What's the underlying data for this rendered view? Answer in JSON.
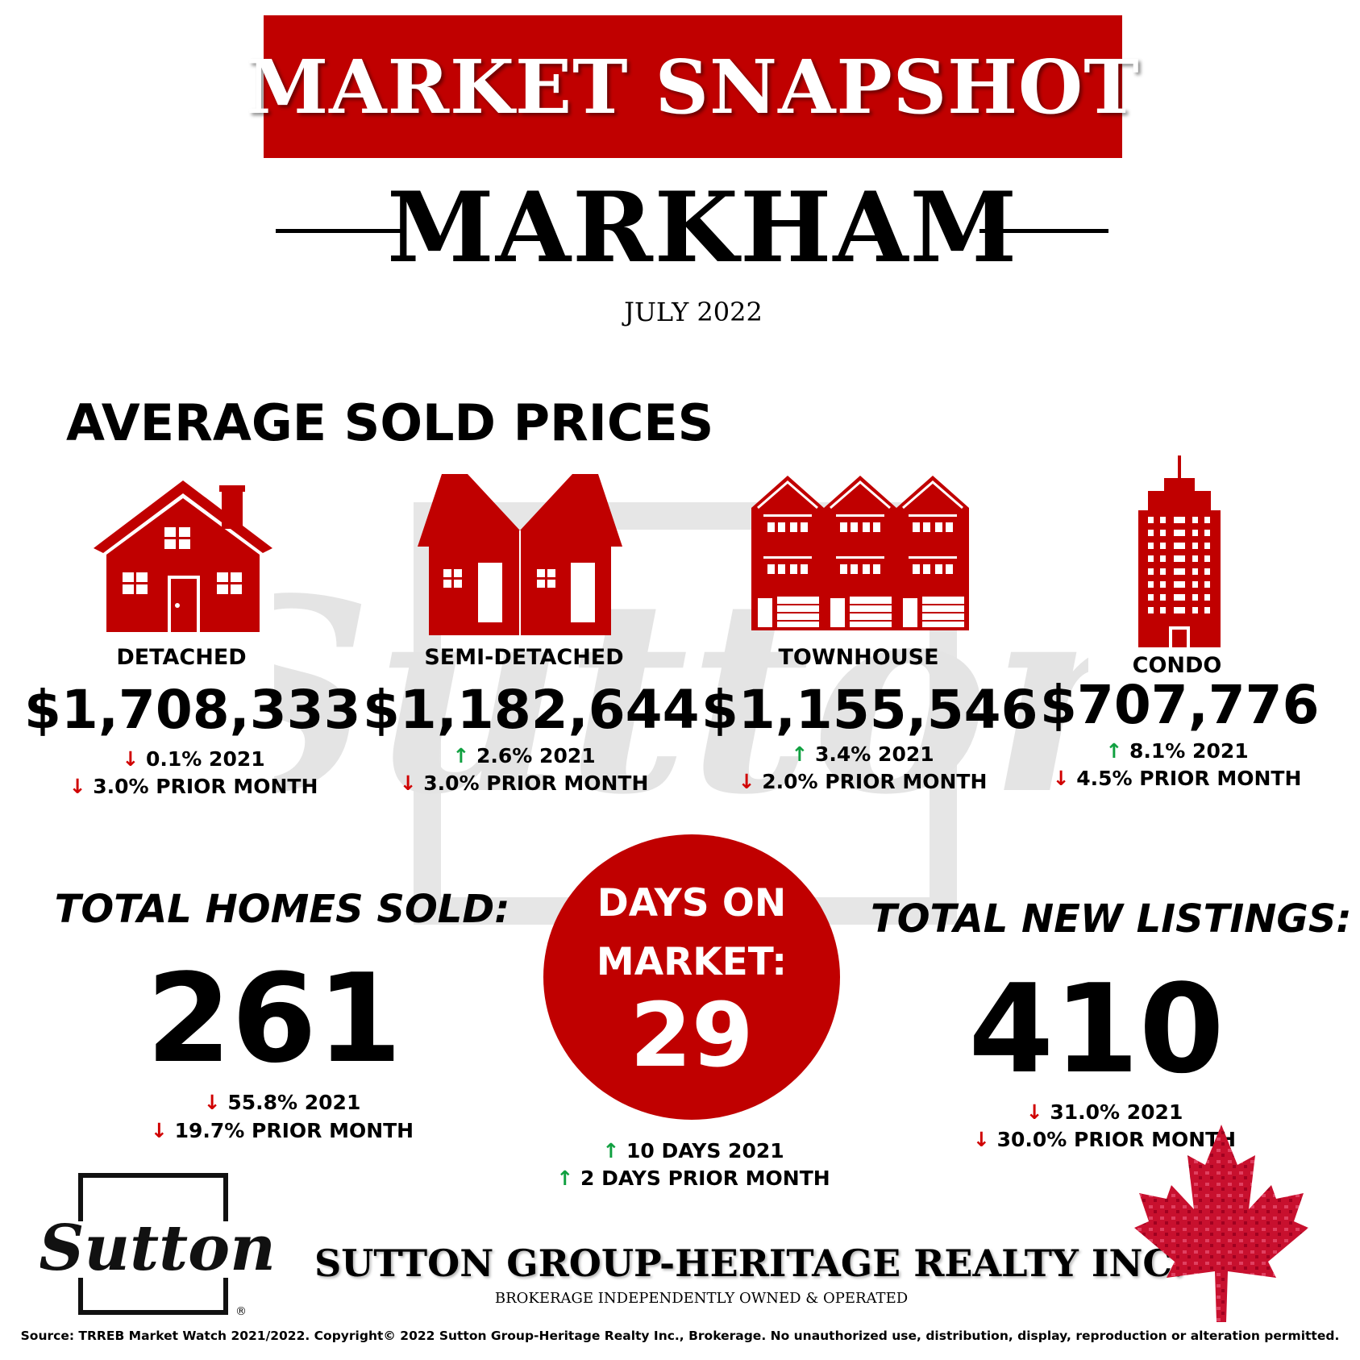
{
  "title": "MARKET SNAPSHOT",
  "city": "MARKHAM",
  "month": "JULY 2022",
  "average_heading": "AVERAGE SOLD PRICES",
  "watermark_text": "Sutton",
  "property_types": [
    {
      "label": "DETACHED",
      "price": "$1,708,333",
      "change_2021": "0.1% 2021",
      "change_2021_dir": "down",
      "change_month": "3.0% PRIOR MONTH",
      "change_month_dir": "down",
      "icon": "detached-house-icon"
    },
    {
      "label": "SEMI-DETACHED",
      "price": "$1,182,644",
      "change_2021": "2.6% 2021",
      "change_2021_dir": "up",
      "change_month": "3.0% PRIOR MONTH",
      "change_month_dir": "down",
      "icon": "semi-detached-house-icon"
    },
    {
      "label": "TOWNHOUSE",
      "price": "$1,155,546",
      "change_2021": "3.4% 2021",
      "change_2021_dir": "up",
      "change_month": "2.0% PRIOR MONTH",
      "change_month_dir": "down",
      "icon": "townhouse-icon"
    },
    {
      "label": "CONDO",
      "price": "$707,776",
      "change_2021": "8.1% 2021",
      "change_2021_dir": "up",
      "change_month": "4.5% PRIOR MONTH",
      "change_month_dir": "down",
      "icon": "condo-tower-icon"
    }
  ],
  "homes_sold": {
    "label": "TOTAL HOMES SOLD:",
    "value": "261",
    "change_2021": "55.8% 2021",
    "change_2021_dir": "down",
    "change_month": "19.7% PRIOR MONTH",
    "change_month_dir": "down"
  },
  "days_on_market": {
    "label_line1": "DAYS ON",
    "label_line2": "MARKET:",
    "value": "29",
    "change_2021": "10 DAYS 2021",
    "change_2021_dir": "up",
    "change_month": "2 DAYS PRIOR MONTH",
    "change_month_dir": "up"
  },
  "new_listings": {
    "label": "TOTAL NEW LISTINGS:",
    "value": "410",
    "change_2021": "31.0% 2021",
    "change_2021_dir": "down",
    "change_month": "30.0% PRIOR MONTH",
    "change_month_dir": "down"
  },
  "logo": {
    "text": "Sutton",
    "mark": "®"
  },
  "company": "SUTTON GROUP-HERITAGE REALTY INC.",
  "brokerage_line": "BROKERAGE INDEPENDENTLY OWNED & OPERATED",
  "source": "Source: TRREB Market Watch 2021/2022. Copyright© 2022 Sutton Group-Heritage Realty Inc., Brokerage. No unauthorized use, distribution, display, reproduction or alteration permitted.",
  "arrows": {
    "down": "↓",
    "up": "↑"
  },
  "colors": {
    "brand_red": "#c00000",
    "down_red": "#d00000",
    "up_green": "#10a040"
  }
}
